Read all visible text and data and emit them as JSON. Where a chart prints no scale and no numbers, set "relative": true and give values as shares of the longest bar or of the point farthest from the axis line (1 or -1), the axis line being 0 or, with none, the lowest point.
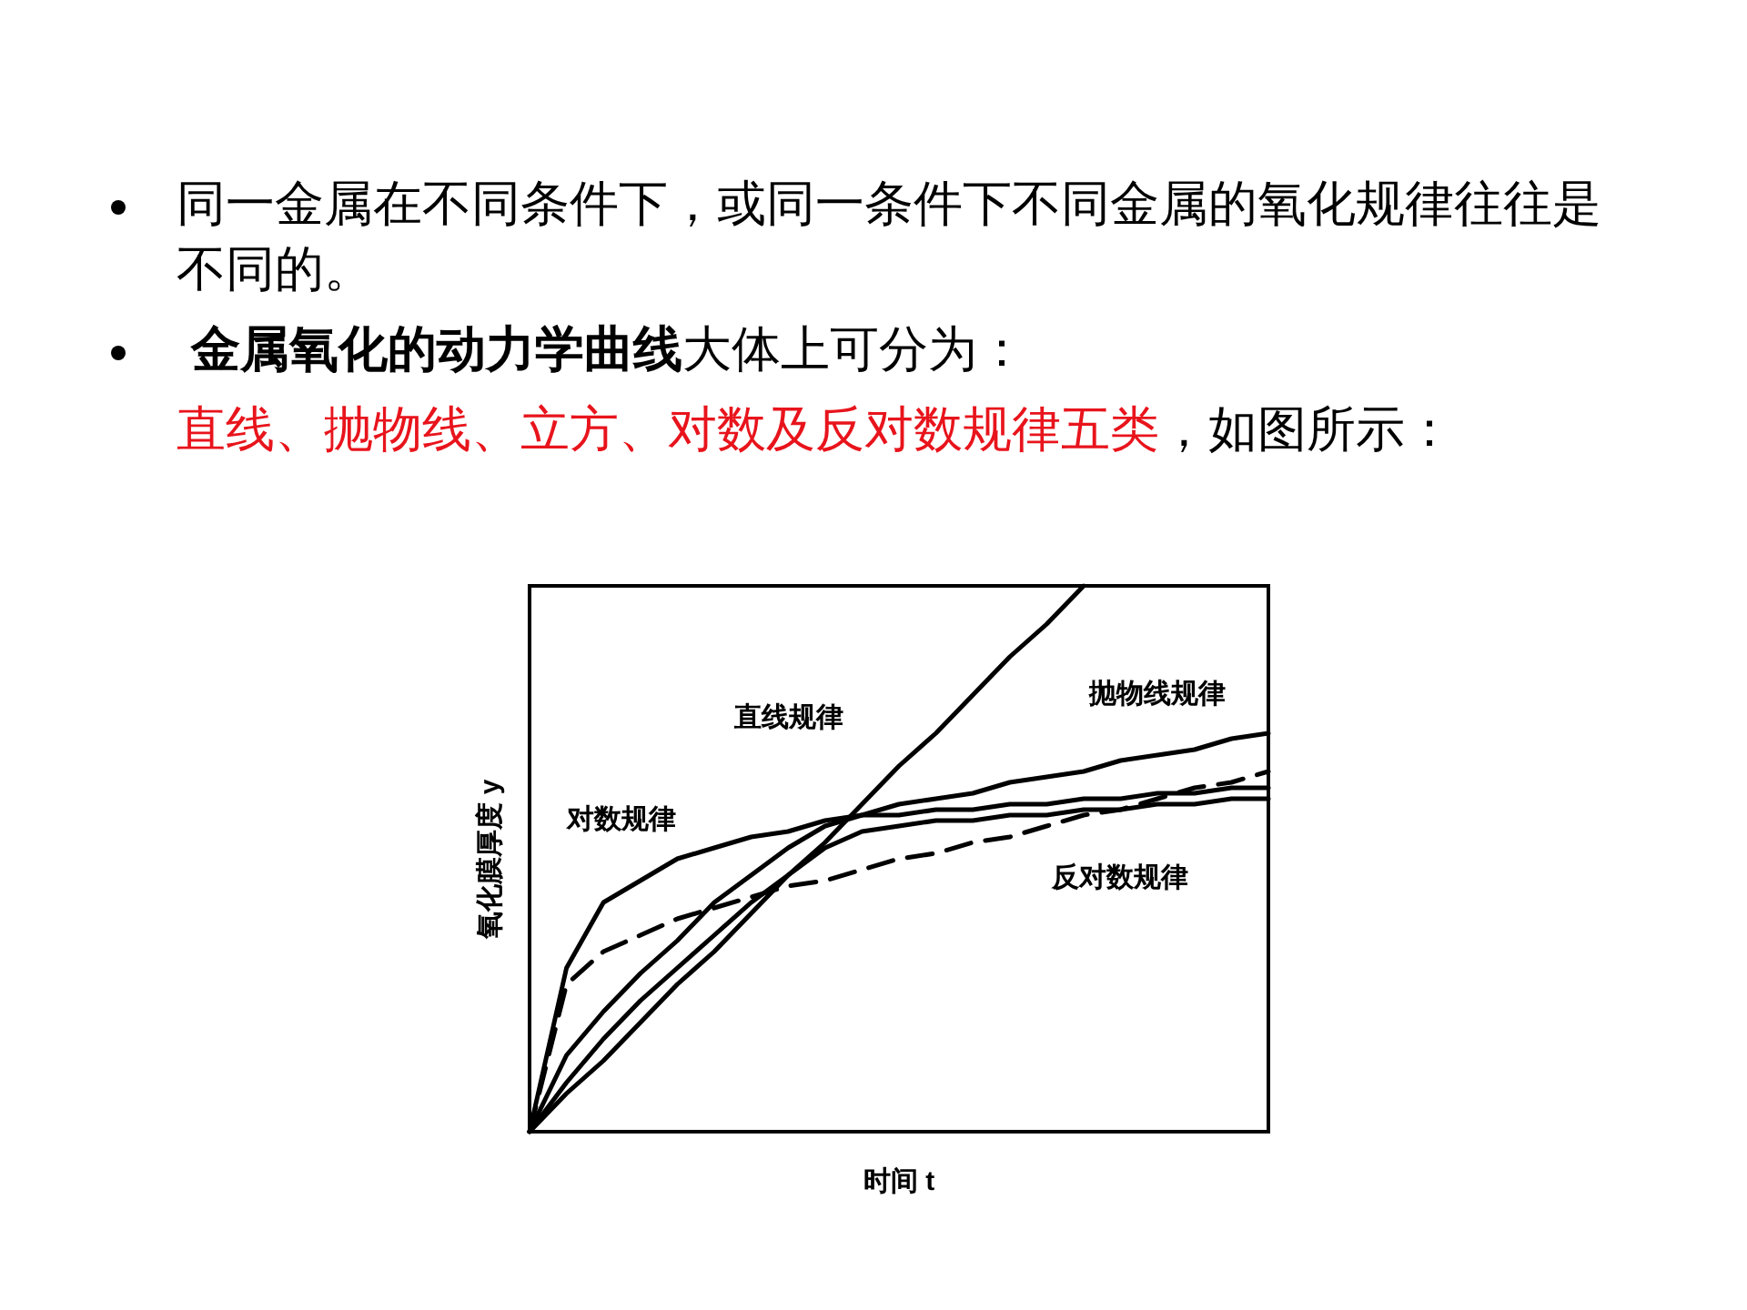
{
  "chart_data": {
    "type": "line",
    "annotations": [
      "同一金属在不同条件下，或同一条件下不同金属的氧化规律往往是不同的。",
      "金属氧化的动力学曲线",
      "大体上可分为：",
      "直线、抛物线、立方、对数及反对数规律五类",
      "，如图所示："
    ],
    "xlabel": "时间 t",
    "ylabel": "氧化膜厚度 y",
    "relative": true,
    "grid": false,
    "legend": false,
    "marker": "none",
    "categories": [
      null,
      null,
      null,
      null,
      null,
      null,
      null,
      null,
      null,
      null,
      null,
      null,
      null,
      null,
      null,
      null,
      null,
      null,
      null,
      null,
      null
    ],
    "series": [
      {
        "name": "直线规律",
        "color": "#000000",
        "line_style": "solid",
        "values": [
          0,
          0.07,
          0.13,
          0.2,
          0.27,
          0.33,
          0.4,
          0.47,
          0.53,
          0.6,
          0.67,
          0.73,
          0.8,
          0.87,
          0.93,
          1,
          null,
          null,
          null,
          null,
          null
        ]
      },
      {
        "name": "抛物线规律",
        "color": "#000000",
        "line_style": "solid",
        "values": [
          0,
          0.14,
          0.22,
          0.29,
          0.35,
          0.42,
          0.47,
          0.52,
          0.56,
          0.58,
          0.6,
          0.61,
          0.62,
          0.64,
          0.65,
          0.66,
          0.68,
          0.69,
          0.7,
          0.72,
          0.73
        ]
      },
      {
        "color": "#000000",
        "line_style": "solid",
        "values": [
          0,
          0.09,
          0.17,
          0.24,
          0.3,
          0.36,
          0.42,
          0.47,
          0.52,
          0.55,
          0.56,
          0.57,
          0.57,
          0.58,
          0.58,
          0.59,
          0.59,
          0.6,
          0.6,
          0.61,
          0.61
        ]
      },
      {
        "name": "对数规律",
        "color": "#000000",
        "line_style": "solid",
        "values": [
          0,
          0.3,
          0.42,
          0.46,
          0.5,
          0.52,
          0.54,
          0.55,
          0.57,
          0.58,
          0.58,
          0.59,
          0.59,
          0.6,
          0.6,
          0.61,
          0.61,
          0.62,
          0.62,
          0.63,
          0.63
        ]
      },
      {
        "name": "反对数规律",
        "color": "#000000",
        "line_style": "dashed",
        "values": [
          0,
          0.27,
          0.33,
          0.36,
          0.39,
          0.41,
          0.43,
          0.45,
          0.46,
          0.48,
          0.5,
          0.51,
          0.53,
          0.54,
          0.56,
          0.58,
          0.59,
          0.61,
          0.63,
          0.64,
          0.66
        ]
      }
    ]
  }
}
